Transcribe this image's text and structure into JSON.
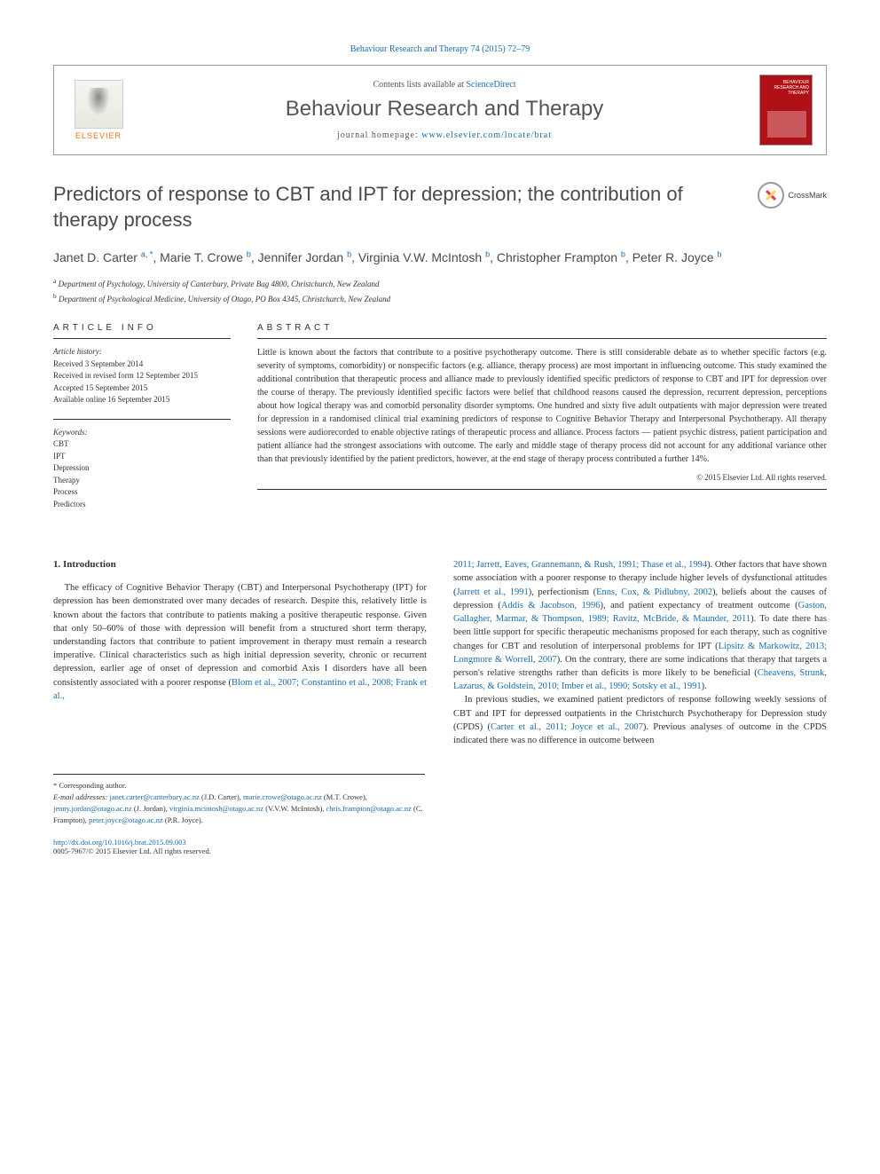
{
  "top_citation": "Behaviour Research and Therapy 74 (2015) 72–79",
  "header": {
    "contents_prefix": "Contents lists available at ",
    "contents_link": "ScienceDirect",
    "journal_name": "Behaviour Research and Therapy",
    "homepage_prefix": "journal homepage: ",
    "homepage_link": "www.elsevier.com/locate/brat",
    "publisher": "ELSEVIER",
    "cover_title": "BEHAVIOUR RESEARCH AND THERAPY"
  },
  "crossmark_label": "CrossMark",
  "title": "Predictors of response to CBT and IPT for depression; the contribution of therapy process",
  "authors_html": "Janet D. Carter <sup>a, *</sup>, Marie T. Crowe <sup>b</sup>, Jennifer Jordan <sup>b</sup>, Virginia V.W. McIntosh <sup>b</sup>, Christopher Frampton <sup>b</sup>, Peter R. Joyce <sup>b</sup>",
  "affiliations": {
    "a": "Department of Psychology, University of Canterbury, Private Bag 4800, Christchurch, New Zealand",
    "b": "Department of Psychological Medicine, University of Otago, PO Box 4345, Christchurch, New Zealand"
  },
  "article_info": {
    "heading": "ARTICLE INFO",
    "history_label": "Article history:",
    "received": "Received 3 September 2014",
    "revised": "Received in revised form 12 September 2015",
    "accepted": "Accepted 15 September 2015",
    "online": "Available online 16 September 2015",
    "keywords_label": "Keywords:",
    "keywords": [
      "CBT",
      "IPT",
      "Depression",
      "Therapy",
      "Process",
      "Predictors"
    ]
  },
  "abstract": {
    "heading": "ABSTRACT",
    "text": "Little is known about the factors that contribute to a positive psychotherapy outcome. There is still considerable debate as to whether specific factors (e.g. severity of symptoms, comorbidity) or nonspecific factors (e.g. alliance, therapy process) are most important in influencing outcome. This study examined the additional contribution that therapeutic process and alliance made to previously identified specific predictors of response to CBT and IPT for depression over the course of therapy. The previously identified specific factors were belief that childhood reasons caused the depression, recurrent depression, perceptions about how logical therapy was and comorbid personality disorder symptoms. One hundred and sixty five adult outpatients with major depression were treated for depression in a randomised clinical trial examining predictors of response to Cognitive Behavior Therapy and Interpersonal Psychotherapy. All therapy sessions were audiorecorded to enable objective ratings of therapeutic process and alliance. Process factors — patient psychic distress, patient participation and patient alliance had the strongest associations with outcome. The early and middle stage of therapy process did not account for any additional variance other than that previously identified by the patient predictors, however, at the end stage of therapy process contributed a further 14%.",
    "copyright": "© 2015 Elsevier Ltd. All rights reserved."
  },
  "section1": {
    "heading": "1. Introduction",
    "para1_pre": "The efficacy of Cognitive Behavior Therapy (CBT) and Interpersonal Psychotherapy (IPT) for depression has been demonstrated over many decades of research. Despite this, relatively little is known about the factors that contribute to patients making a positive therapeutic response. Given that only 50–60% of those with depression will benefit from a structured short term therapy, understanding factors that contribute to patient improvement in therapy must remain a research imperative. Clinical characteristics such as high initial depression severity, chronic or recurrent depression, earlier age of onset of depression and comorbid Axis I disorders have all been consistently associated with a poorer response (",
    "para1_link1": "Blom et al., 2007; Constantino et al., 2008; Frank et al.,",
    "para2_link_start": "2011; Jarrett, Eaves, Grannemann, & Rush, 1991; Thase et al., 1994",
    "para2_mid1": "). Other factors that have shown some association with a poorer response to therapy include higher levels of dysfunctional attitudes (",
    "para2_link2": "Jarrett et al., 1991",
    "para2_mid2": "), perfectionism (",
    "para2_link3": "Enns, Cox, & Pidlubny, 2002",
    "para2_mid3": "), beliefs about the causes of depression (",
    "para2_link4": "Addis & Jacobson, 1996",
    "para2_mid4": "), and patient expectancy of treatment outcome (",
    "para2_link5": "Gaston, Gallagher, Marmar, & Thompson, 1989; Ravitz, McBride, & Maunder, 2011",
    "para2_mid5": "). To date there has been little support for specific therapeutic mechanisms proposed for each therapy, such as cognitive changes for CBT and resolution of interpersonal problems for IPT (",
    "para2_link6": "Lipsitz & Markowitz, 2013; Longmore & Worrell, 2007",
    "para2_mid6": "). On the contrary, there are some indications that therapy that targets a person's relative strengths rather than deficits is more likely to be beneficial (",
    "para2_link7": "Cheavens, Strunk, Lazarus, & Goldstein, 2010; Imber et al., 1990; Sotsky et al., 1991",
    "para2_end": ").",
    "para3_pre": "In previous studies, we examined patient predictors of response following weekly sessions of CBT and IPT for depressed outpatients in the Christchurch Psychotherapy for Depression study (CPDS) (",
    "para3_link1": "Carter et al., 2011; Joyce et al., 2007",
    "para3_end": "). Previous analyses of outcome in the CPDS indicated there was no difference in outcome between"
  },
  "footnotes": {
    "corresp": "* Corresponding author.",
    "email_label": "E-mail addresses:",
    "emails": [
      {
        "addr": "janet.carter@canterbury.ac.nz",
        "who": "(J.D. Carter)"
      },
      {
        "addr": "marie.crowe@otago.ac.nz",
        "who": "(M.T. Crowe)"
      },
      {
        "addr": "jenny.jordan@otago.ac.nz",
        "who": "(J. Jordan)"
      },
      {
        "addr": "virginia.mcintosh@otago.ac.nz",
        "who": "(V.V.W. McIntosh)"
      },
      {
        "addr": "chris.frampton@otago.ac.nz",
        "who": "(C. Frampton)"
      },
      {
        "addr": "peter.joyce@otago.ac.nz",
        "who": "(P.R. Joyce)"
      }
    ]
  },
  "footer": {
    "doi": "http://dx.doi.org/10.1016/j.brat.2015.09.003",
    "issn_copy": "0005-7967/© 2015 Elsevier Ltd. All rights reserved."
  },
  "colors": {
    "link": "#1a6ba8",
    "elsevier_orange": "#ec7216",
    "cover_red": "#b01116"
  }
}
